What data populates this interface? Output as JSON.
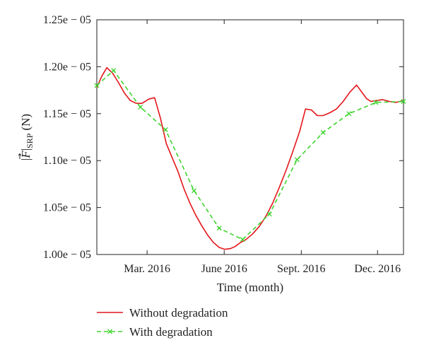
{
  "chart_data": {
    "type": "line",
    "title": "",
    "xlabel": "Time (month)",
    "ylabel": "|F|SRP (N)",
    "ylabel_main": "|",
    "ylabel_F": "F",
    "ylabel_bar": "|",
    "ylabel_sub": "SRP",
    "ylabel_unit": "(N)",
    "xlim": [
      "2016-01-01",
      "2017-01-01"
    ],
    "ylim": [
      1e-05,
      1.25e-05
    ],
    "yticks": [
      1e-05,
      1.05e-05,
      1.1e-05,
      1.15e-05,
      1.2e-05,
      1.25e-05
    ],
    "ytick_labels": [
      "1.00e − 05",
      "1.05e − 05",
      "1.10e − 05",
      "1.15e − 05",
      "1.20e − 05",
      "1.25e − 05"
    ],
    "xticks": [
      "2016-03-01",
      "2016-06-01",
      "2016-09-01",
      "2016-12-01"
    ],
    "xtick_labels": [
      "Mar. 2016",
      "June 2016",
      "Sept. 2016",
      "Dec. 2016"
    ],
    "grid": false,
    "legend_position": "below",
    "series": [
      {
        "name": "Without degradation",
        "color": "#e3161b",
        "style": "solid",
        "marker": "none",
        "x": [
          "2016-01-01",
          "2016-01-07",
          "2016-01-13",
          "2016-01-20",
          "2016-01-27",
          "2016-02-03",
          "2016-02-10",
          "2016-02-17",
          "2016-02-24",
          "2016-03-03",
          "2016-03-10",
          "2016-03-17",
          "2016-03-24",
          "2016-03-31",
          "2016-04-07",
          "2016-04-14",
          "2016-04-21",
          "2016-04-28",
          "2016-05-05",
          "2016-05-12",
          "2016-05-19",
          "2016-05-26",
          "2016-06-02",
          "2016-06-09",
          "2016-06-14",
          "2016-06-20",
          "2016-06-27",
          "2016-07-05",
          "2016-07-13",
          "2016-07-21",
          "2016-07-29",
          "2016-08-06",
          "2016-08-14",
          "2016-08-22",
          "2016-08-30",
          "2016-09-06",
          "2016-09-13",
          "2016-09-20",
          "2016-09-27",
          "2016-10-05",
          "2016-10-13",
          "2016-10-21",
          "2016-10-29",
          "2016-11-06",
          "2016-11-13",
          "2016-11-18",
          "2016-11-23",
          "2016-11-30",
          "2016-12-07",
          "2016-12-15",
          "2016-12-23",
          "2017-01-01"
        ],
        "y": [
          1.178e-05,
          1.19e-05,
          1.199e-05,
          1.193e-05,
          1.183e-05,
          1.172e-05,
          1.164e-05,
          1.161e-05,
          1.161e-05,
          1.1655e-05,
          1.167e-05,
          1.145e-05,
          1.118e-05,
          1.103e-05,
          1.088e-05,
          1.07e-05,
          1.055e-05,
          1.042e-05,
          1.031e-05,
          1.021e-05,
          1.013e-05,
          1.0075e-05,
          1.0055e-05,
          1.0065e-05,
          1.0085e-05,
          1.0125e-05,
          1.016e-05,
          1.022e-05,
          1.03e-05,
          1.041e-05,
          1.055e-05,
          1.072e-05,
          1.09e-05,
          1.11e-05,
          1.131e-05,
          1.155e-05,
          1.154e-05,
          1.148e-05,
          1.148e-05,
          1.151e-05,
          1.155e-05,
          1.163e-05,
          1.173e-05,
          1.1805e-05,
          1.172e-05,
          1.166e-05,
          1.163e-05,
          1.164e-05,
          1.165e-05,
          1.163e-05,
          1.162e-05,
          1.164e-05
        ]
      },
      {
        "name": "With degradation",
        "color": "#3ed42f",
        "style": "dashed",
        "marker": "x",
        "x": [
          "2016-01-01",
          "2016-01-21",
          "2016-02-22",
          "2016-03-23",
          "2016-04-26",
          "2016-05-26",
          "2016-06-23",
          "2016-07-25",
          "2016-08-27",
          "2016-09-27",
          "2016-10-28",
          "2016-11-29",
          "2017-01-01"
        ],
        "y": [
          1.18e-05,
          1.196e-05,
          1.157e-05,
          1.133e-05,
          1.068e-05,
          1.028e-05,
          1.016e-05,
          1.043e-05,
          1.101e-05,
          1.13e-05,
          1.15e-05,
          1.162e-05,
          1.163e-05
        ]
      }
    ]
  }
}
